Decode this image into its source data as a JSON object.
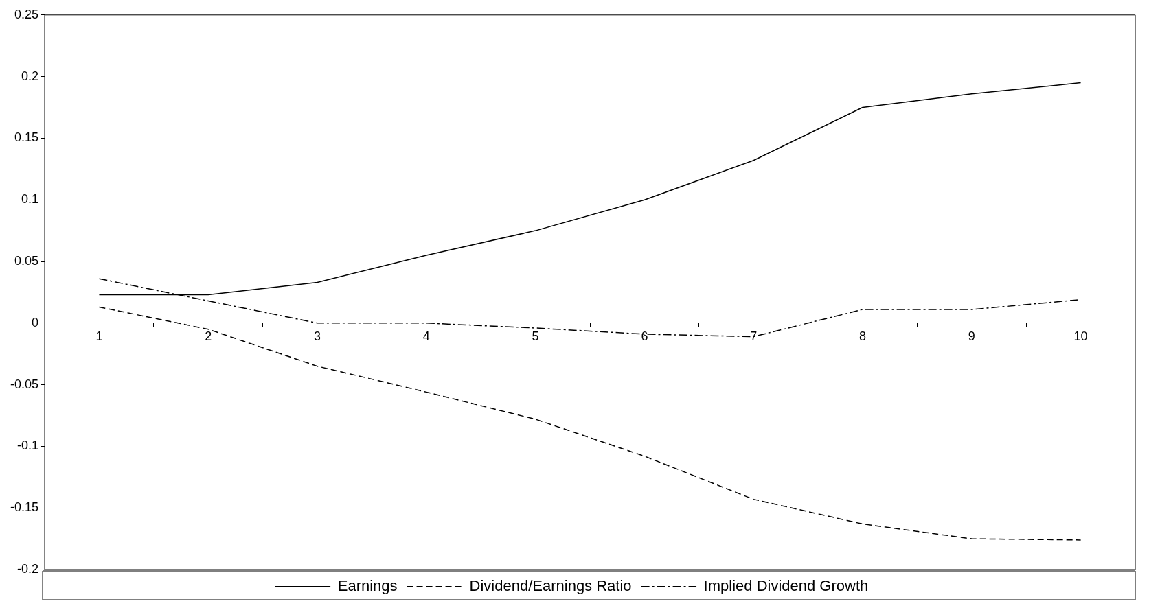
{
  "chart_data": {
    "type": "line",
    "categories": [
      "1",
      "2",
      "3",
      "4",
      "5",
      "6",
      "7",
      "8",
      "9",
      "10"
    ],
    "series": [
      {
        "name": "Earnings",
        "color": "#000000",
        "line_style": "solid",
        "values": [
          0.023,
          0.023,
          0.033,
          0.055,
          0.075,
          0.1,
          0.132,
          0.175,
          0.186,
          0.195
        ]
      },
      {
        "name": "Dividend/Earnings Ratio",
        "color": "#000000",
        "line_style": "dashed",
        "values": [
          0.013,
          -0.005,
          -0.035,
          -0.056,
          -0.078,
          -0.108,
          -0.143,
          -0.163,
          -0.175,
          -0.176
        ]
      },
      {
        "name": "Implied Dividend Growth",
        "color": "#000000",
        "line_style": "dashdot",
        "values": [
          0.036,
          0.018,
          0,
          0,
          -0.004,
          -0.009,
          -0.011,
          0.011,
          0.011,
          0.019
        ]
      }
    ],
    "ylim": [
      -0.2,
      0.25
    ],
    "yticks": [
      -0.2,
      -0.15,
      -0.1,
      -0.05,
      0,
      0.05,
      0.1,
      0.15,
      0.2,
      0.25
    ],
    "grid": false,
    "legend": "bottom",
    "marker": "none"
  }
}
